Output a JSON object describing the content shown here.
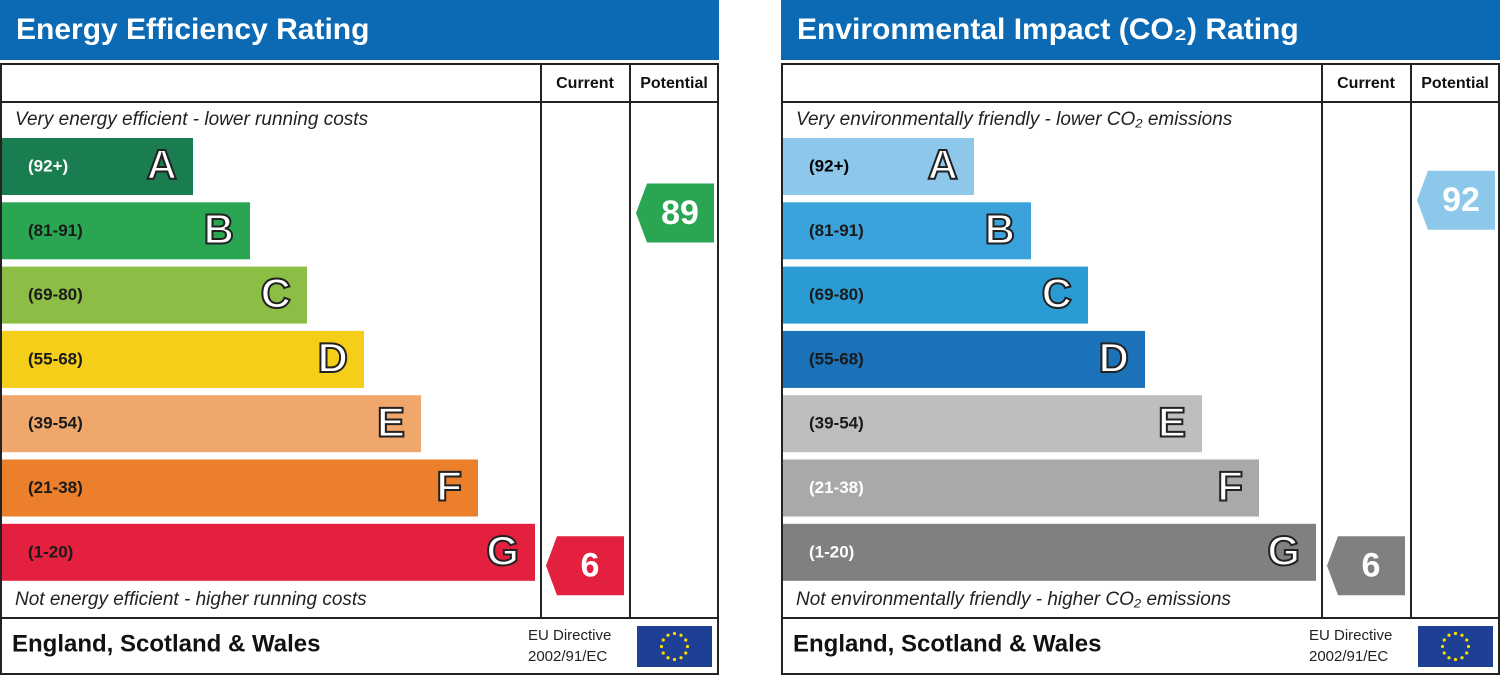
{
  "panels": [
    {
      "title": "Energy Efficiency Rating",
      "columns": [
        "Current",
        "Potential"
      ],
      "top_text": "Very energy efficient - lower running costs",
      "bottom_text": "Not energy efficient - higher running costs",
      "bands": [
        {
          "range": "(92+)",
          "letter": "A",
          "color": "#1a7d4f",
          "text_color": "#ffffff"
        },
        {
          "range": "(81-91)",
          "letter": "B",
          "color": "#2aa653",
          "text_color": "#1a1a1a"
        },
        {
          "range": "(69-80)",
          "letter": "C",
          "color": "#8cbd45",
          "text_color": "#1a1a1a"
        },
        {
          "range": "(55-68)",
          "letter": "D",
          "color": "#f5ce1a",
          "text_color": "#1a1a1a"
        },
        {
          "range": "(39-54)",
          "letter": "E",
          "color": "#f0a76b",
          "text_color": "#1a1a1a"
        },
        {
          "range": "(21-38)",
          "letter": "F",
          "color": "#eb7f2b",
          "text_color": "#1a1a1a"
        },
        {
          "range": "(1-20)",
          "letter": "G",
          "color": "#e3203e",
          "text_color": "#1a1a1a"
        }
      ],
      "current": {
        "value": 6,
        "color": "#e3203e"
      },
      "potential": {
        "value": 89,
        "color": "#2aa653"
      },
      "footer": {
        "region": "England, Scotland & Wales",
        "directive": [
          "EU Directive",
          "2002/91/EC"
        ]
      }
    },
    {
      "title": "Environmental Impact (CO₂) Rating",
      "columns": [
        "Current",
        "Potential"
      ],
      "top_text": "Very environmentally friendly - lower CO₂ emissions",
      "bottom_text": "Not environmentally friendly - higher CO₂ emissions",
      "bands": [
        {
          "range": "(92+)",
          "letter": "A",
          "color": "#8dc8ea",
          "text_color": "#000000"
        },
        {
          "range": "(81-91)",
          "letter": "B",
          "color": "#3aa3dc",
          "text_color": "#1a1a1a"
        },
        {
          "range": "(69-80)",
          "letter": "C",
          "color": "#2b9bd4",
          "text_color": "#1a1a1a"
        },
        {
          "range": "(55-68)",
          "letter": "D",
          "color": "#1b72b8",
          "text_color": "#1a1a1a"
        },
        {
          "range": "(39-54)",
          "letter": "E",
          "color": "#bebebe",
          "text_color": "#1a1a1a"
        },
        {
          "range": "(21-38)",
          "letter": "F",
          "color": "#a9a9a9",
          "text_color": "#ffffff"
        },
        {
          "range": "(1-20)",
          "letter": "G",
          "color": "#808080",
          "text_color": "#ffffff"
        }
      ],
      "current": {
        "value": 6,
        "color": "#808080"
      },
      "potential": {
        "value": 92,
        "color": "#8dc8ea"
      },
      "footer": {
        "region": "England, Scotland & Wales",
        "directive": [
          "EU Directive",
          "2002/91/EC"
        ]
      }
    }
  ]
}
